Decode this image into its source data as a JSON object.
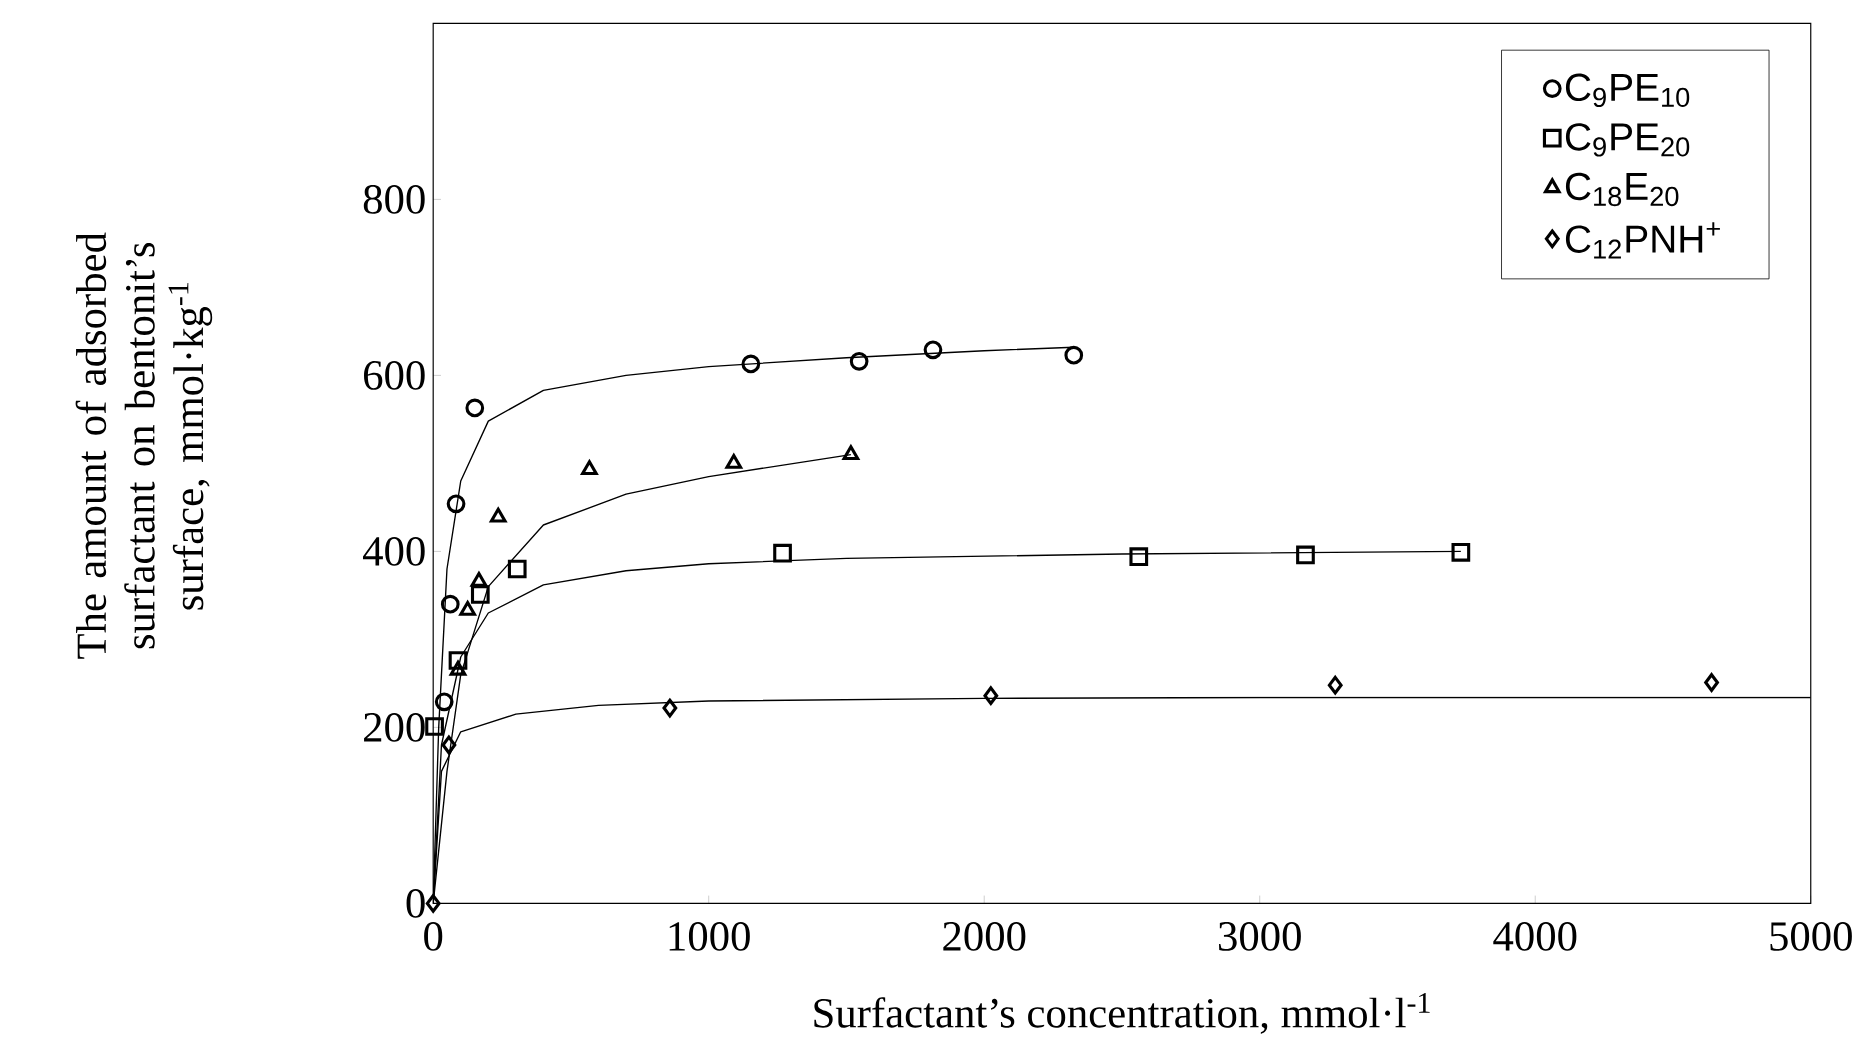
{
  "chart_data": {
    "type": "scatter",
    "xlabel": "Surfactant’s concentration, mmol·l$^{-1}$",
    "ylabel": "The amount of adsorbed surfactant on bentonit’s surface, mmol·kg$^{-1}$",
    "xlim": [
      0,
      5000
    ],
    "ylim": [
      0,
      1000
    ],
    "xticks": [
      0,
      1000,
      2000,
      3000,
      4000,
      5000
    ],
    "yticks": [
      0,
      200,
      400,
      600,
      800
    ],
    "legend": "top right",
    "grid": false,
    "series": [
      {
        "name": "C$_{9}$PE$_{10}$",
        "marker": "circle",
        "color": "#000000",
        "x": [
          40,
          62,
          83,
          151,
          1153,
          1546,
          1814,
          2325
        ],
        "values": [
          229,
          340,
          454,
          563,
          613,
          616,
          629,
          623
        ]
      },
      {
        "name": "C$_{9}$PE$_{20}$",
        "marker": "square",
        "color": "#000000",
        "x": [
          5,
          90,
          171,
          305,
          1268,
          2561,
          3166,
          3730
        ],
        "values": [
          201,
          276,
          351,
          380,
          398,
          394,
          396,
          399
        ]
      },
      {
        "name": "C$_{18}$E$_{20}$",
        "marker": "triangle",
        "color": "#000000",
        "x": [
          90,
          125,
          166,
          236,
          567,
          1091,
          1516
        ],
        "values": [
          265,
          333,
          366,
          439,
          493,
          500,
          510
        ]
      },
      {
        "name": "C$_{12}$PNH$^{+}$",
        "marker": "diamond",
        "color": "#000000",
        "x": [
          0,
          57,
          859,
          2024,
          3274,
          4640
        ],
        "values": [
          0,
          180,
          222,
          236,
          248,
          251
        ]
      },
      {
        "type": "line",
        "color": "#000000",
        "x": [
          0,
          20,
          50,
          100,
          200,
          400,
          700,
          1000,
          1500,
          2000,
          2325
        ],
        "values": [
          0,
          200,
          380,
          480,
          548,
          583,
          600,
          610,
          620,
          628,
          632
        ]
      },
      {
        "type": "line",
        "color": "#000000",
        "x": [
          0,
          30,
          100,
          200,
          400,
          700,
          1000,
          1500,
          2500,
          3730
        ],
        "values": [
          0,
          180,
          280,
          330,
          362,
          378,
          386,
          392,
          397,
          400
        ]
      },
      {
        "type": "line",
        "color": "#000000",
        "x": [
          0,
          50,
          100,
          200,
          400,
          700,
          1000,
          1516
        ],
        "values": [
          0,
          150,
          260,
          360,
          430,
          465,
          485,
          510
        ]
      },
      {
        "type": "line",
        "color": "#000000",
        "x": [
          0,
          30,
          100,
          300,
          600,
          1000,
          2000,
          3000,
          5000
        ],
        "values": [
          0,
          150,
          195,
          215,
          225,
          230,
          233,
          234,
          234
        ]
      }
    ]
  }
}
